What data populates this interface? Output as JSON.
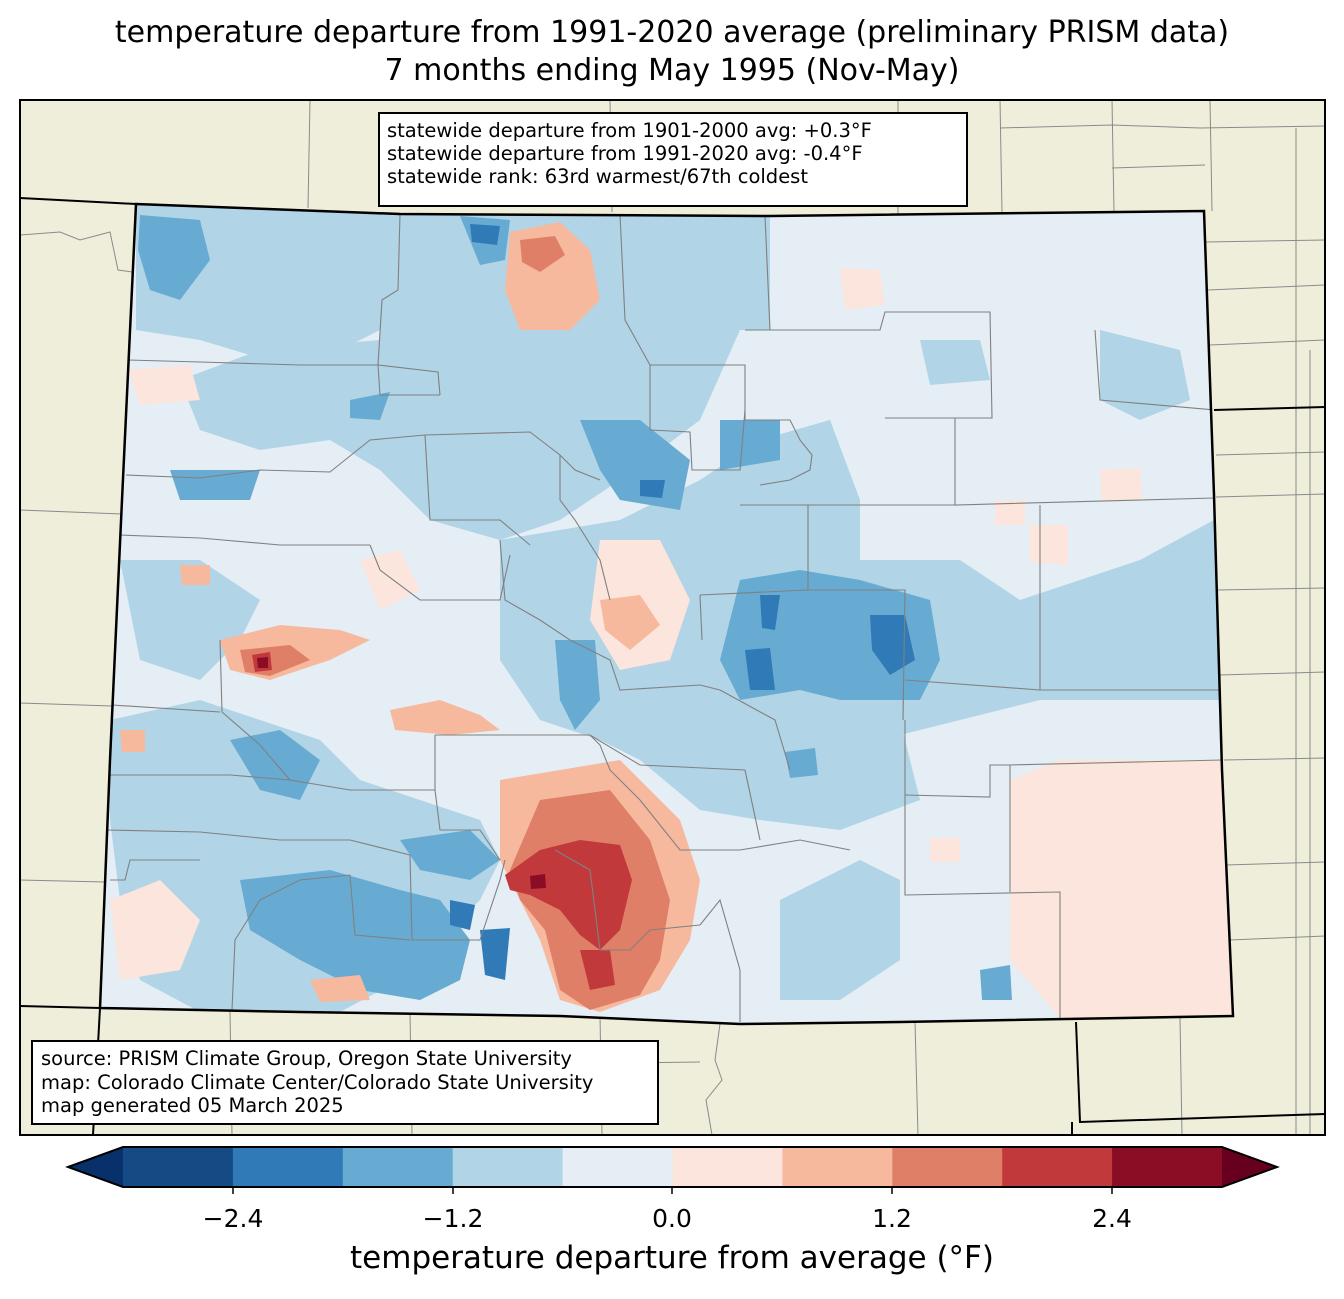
{
  "title": {
    "line1": "temperature departure from 1991-2020 average (preliminary PRISM data)",
    "line2": "7 months ending May 1995 (Nov-May)"
  },
  "stats": {
    "line1": "statewide departure from 1901-2000 avg: +0.3°F",
    "line2": "statewide departure from 1991-2020 avg: -0.4°F",
    "line3": "statewide rank: 63rd warmest/67th coldest"
  },
  "source": {
    "line1": "source: PRISM Climate Group, Oregon State University",
    "line2": "map: Colorado Climate Center/Colorado State University",
    "line3": "map generated 05 March 2025"
  },
  "colorbar": {
    "label": "temperature departure from average (°F)",
    "ticks": [
      "−2.4",
      "−1.2",
      "0.0",
      "1.2",
      "2.4"
    ],
    "colors": [
      "#08306b",
      "#144b84",
      "#2f7ab7",
      "#68abd2",
      "#b1d4e7",
      "#e5eef5",
      "#fbe5dc",
      "#f7b99e",
      "#e07f68",
      "#c2393c",
      "#8b0c25",
      "#67001f"
    ]
  },
  "map_colors": {
    "land": "#efeedb",
    "state_border": "#000000",
    "county_lines": "#808080"
  }
}
